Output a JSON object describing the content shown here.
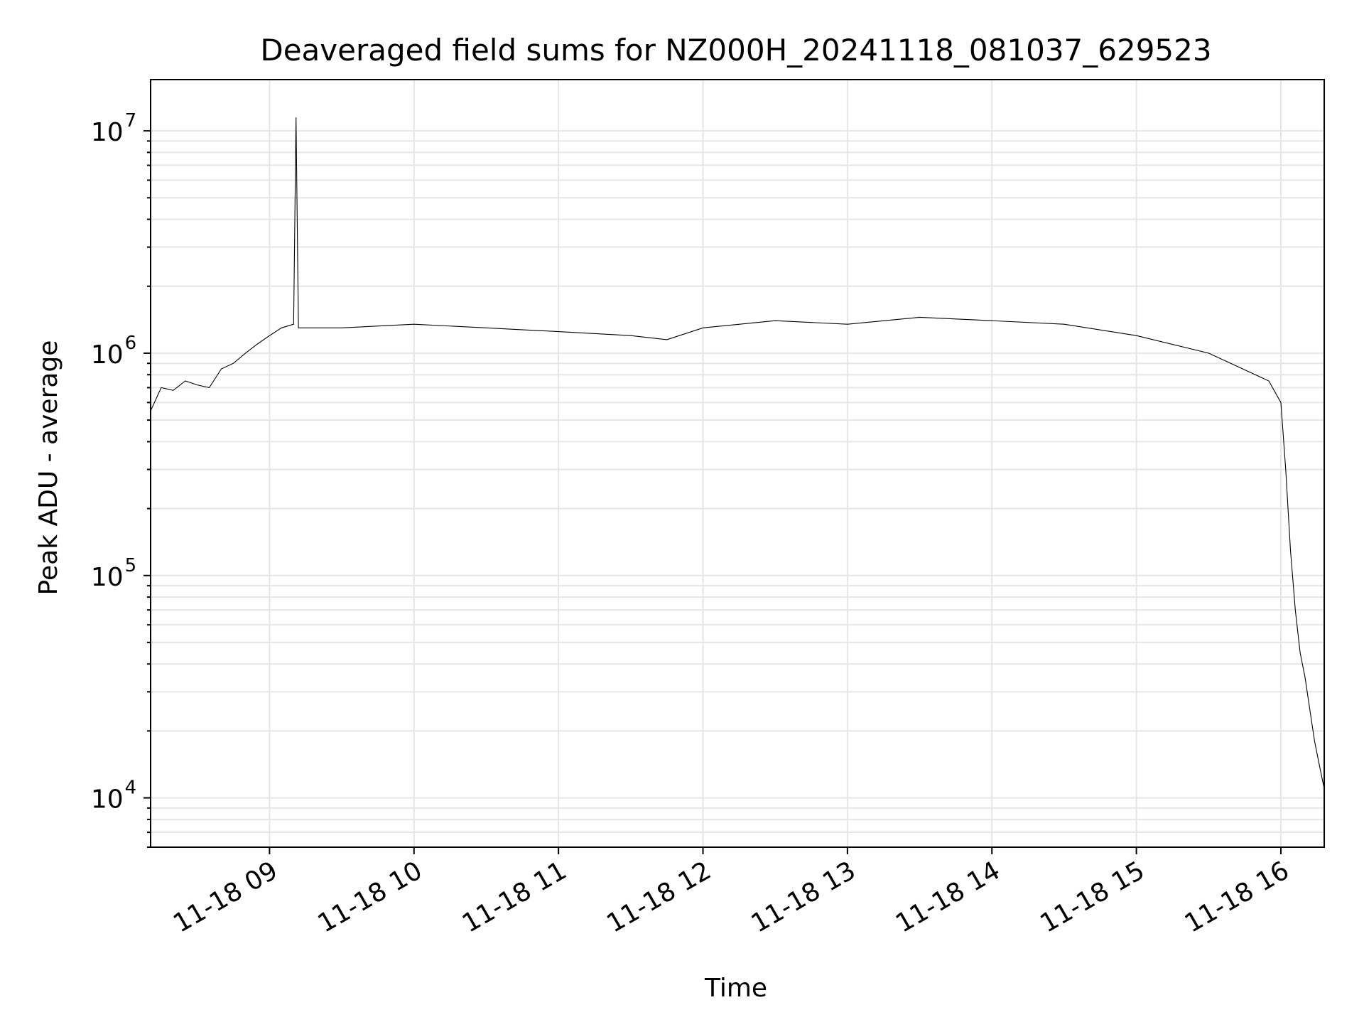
{
  "chart_data": {
    "type": "line",
    "title": "Deaveraged field sums for NZ000H_20241118_081037_629523",
    "xlabel": "Time",
    "ylabel": "Peak ADU - average",
    "yscale": "log",
    "grid": true,
    "xlim": [
      "2024-11-18T08:10:37",
      "2024-11-18T16:18:00"
    ],
    "ylim": [
      6000,
      17000000
    ],
    "xticks": [
      {
        "label": "11-18 09",
        "value": "2024-11-18T09:00:00"
      },
      {
        "label": "11-18 10",
        "value": "2024-11-18T10:00:00"
      },
      {
        "label": "11-18 11",
        "value": "2024-11-18T11:00:00"
      },
      {
        "label": "11-18 12",
        "value": "2024-11-18T12:00:00"
      },
      {
        "label": "11-18 13",
        "value": "2024-11-18T13:00:00"
      },
      {
        "label": "11-18 14",
        "value": "2024-11-18T14:00:00"
      },
      {
        "label": "11-18 15",
        "value": "2024-11-18T15:00:00"
      },
      {
        "label": "11-18 16",
        "value": "2024-11-18T16:00:00"
      }
    ],
    "yticks": [
      {
        "base": "10",
        "exp": "4",
        "value": 10000
      },
      {
        "base": "10",
        "exp": "5",
        "value": 100000
      },
      {
        "base": "10",
        "exp": "6",
        "value": 1000000
      },
      {
        "base": "10",
        "exp": "7",
        "value": 10000000
      }
    ],
    "series": [
      {
        "color": "#000000",
        "points": [
          [
            "2024-11-18T08:10:37",
            550000
          ],
          [
            "2024-11-18T08:15:00",
            700000
          ],
          [
            "2024-11-18T08:20:00",
            680000
          ],
          [
            "2024-11-18T08:25:00",
            750000
          ],
          [
            "2024-11-18T08:30:00",
            720000
          ],
          [
            "2024-11-18T08:35:00",
            700000
          ],
          [
            "2024-11-18T08:40:00",
            850000
          ],
          [
            "2024-11-18T08:45:00",
            900000
          ],
          [
            "2024-11-18T08:50:00",
            1000000
          ],
          [
            "2024-11-18T08:55:00",
            1100000
          ],
          [
            "2024-11-18T09:00:00",
            1200000
          ],
          [
            "2024-11-18T09:05:00",
            1300000
          ],
          [
            "2024-11-18T09:10:00",
            1350000
          ],
          [
            "2024-11-18T09:11:00",
            11500000
          ],
          [
            "2024-11-18T09:12:00",
            1300000
          ],
          [
            "2024-11-18T09:30:00",
            1300000
          ],
          [
            "2024-11-18T10:00:00",
            1350000
          ],
          [
            "2024-11-18T10:30:00",
            1300000
          ],
          [
            "2024-11-18T11:00:00",
            1250000
          ],
          [
            "2024-11-18T11:30:00",
            1200000
          ],
          [
            "2024-11-18T11:45:00",
            1150000
          ],
          [
            "2024-11-18T12:00:00",
            1300000
          ],
          [
            "2024-11-18T12:30:00",
            1400000
          ],
          [
            "2024-11-18T13:00:00",
            1350000
          ],
          [
            "2024-11-18T13:30:00",
            1450000
          ],
          [
            "2024-11-18T14:00:00",
            1400000
          ],
          [
            "2024-11-18T14:30:00",
            1350000
          ],
          [
            "2024-11-18T15:00:00",
            1200000
          ],
          [
            "2024-11-18T15:30:00",
            1000000
          ],
          [
            "2024-11-18T15:55:00",
            750000
          ],
          [
            "2024-11-18T16:00:00",
            600000
          ],
          [
            "2024-11-18T16:02:00",
            300000
          ],
          [
            "2024-11-18T16:04:00",
            130000
          ],
          [
            "2024-11-18T16:06:00",
            70000
          ],
          [
            "2024-11-18T16:08:00",
            45000
          ],
          [
            "2024-11-18T16:10:00",
            35000
          ],
          [
            "2024-11-18T16:12:00",
            25000
          ],
          [
            "2024-11-18T16:14:00",
            18000
          ],
          [
            "2024-11-18T16:16:00",
            14000
          ],
          [
            "2024-11-18T16:18:00",
            11000
          ]
        ]
      }
    ]
  }
}
